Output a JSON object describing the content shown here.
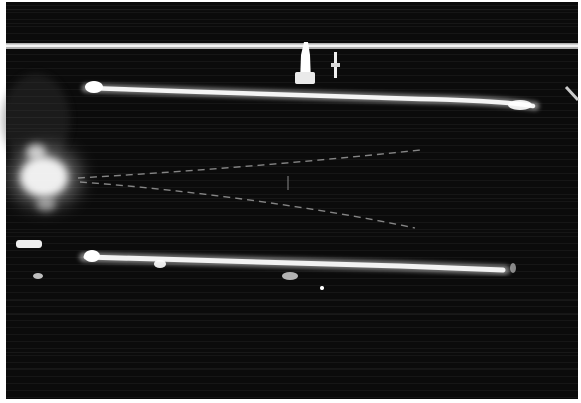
{
  "image": {
    "subject": "long-exposure-streaks",
    "palette": {
      "background": "#0a0a0a",
      "border": "#ffffff",
      "streak": "#f2f2f2",
      "glow": "#ffffff",
      "scanline": "#1c1c1c",
      "bright_band": "#dcdcdc"
    }
  }
}
